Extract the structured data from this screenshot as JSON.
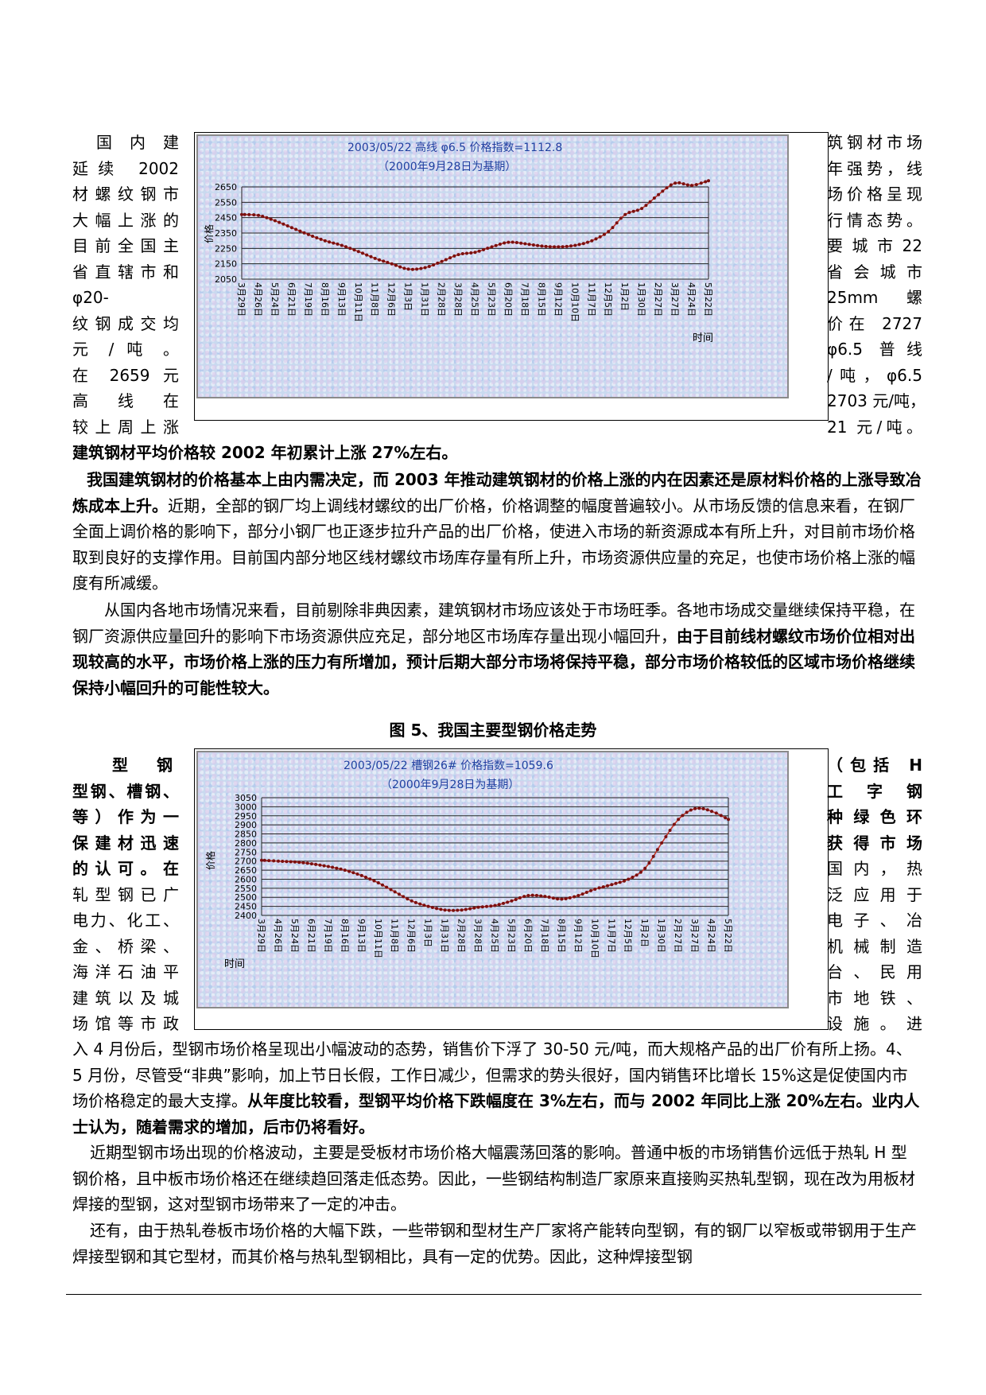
{
  "left_text_1": [
    "国内建",
    "延续 2002",
    "材螺纹钢市",
    "大幅上涨的",
    "目前全国主",
    "省直辖市和",
    "φ20-",
    "纹钢成交均",
    "元 / 吨 。",
    "在 2659 元",
    "高 线 在",
    "较上周上涨"
  ],
  "right_text_1": [
    "筑钢材市场",
    "年强势，线",
    "场价格呈现",
    "行情态势。",
    "要 城 市 22",
    "省 会 城 市",
    "25mm 螺",
    "价在 2727",
    "φ6.5 普线",
    "/吨，φ6.5",
    "2703 元/吨，",
    "21 元/吨。"
  ],
  "p1_bold": "建筑钢材平均价格较 2002 年初累计上涨 27%左右。",
  "p2_bold": "我国建筑钢材的价格基本上由内需决定，而 2003 年推动建筑钢材的价格上涨的内在因素还是原材料价格的上涨导致冶炼成本上升。",
  "p2_normal": "近期，全部的钢厂均上调线材螺纹的出厂价格，价格调整的幅度普遍较小。从市场反馈的信息来看，在钢厂全面上调价格的影响下，部分小钢厂也正逐步拉升产品的出厂价格，使进入市场的新资源成本有所上升，对目前市场价格取到良好的支撑作用。目前国内部分地区线材螺纹市场库存量有所上升，市场资源供应量的充足，也使市场价格上涨的幅度有所减缓。",
  "p3_normal": "从国内各地市场情况来看，目前剔除非典因素，建筑钢材市场应该处于市场旺季。各地市场成交量继续保持平稳，在钢厂资源供应量回升的影响下市场资源供应充足，部分地区市场库存量出现小幅回升，",
  "p3_bold": "由于目前线材螺纹市场价位相对出现较高的水平，市场价格上涨的压力有所增加，预计后期大部分市场将保持平稳，部分市场价格较低的区域市场价格继续保持小幅回升的可能性较大。",
  "fig5_caption": "图 5、我国主要型钢价格走势",
  "left_text_2": [
    "型 钢",
    "型钢、槽钢、",
    "等）作为一",
    "保建材迅速",
    "的认可。在",
    "轧型钢已广",
    "电力、化工、",
    "金、桥梁、",
    "海洋石油平",
    "建筑以及城",
    "场馆等市政"
  ],
  "right_text_2": [
    "（包括 H",
    "工 字 钢",
    "种绿色环",
    "获得市场",
    "国内，热",
    "泛应用于",
    "电子、冶",
    "机械制造",
    "台、民用",
    "市地铁、",
    "设施。进"
  ],
  "p4_normal": "入 4 月份后，型钢市场价格呈现出小幅波动的态势，销售价下浮了 30-50 元/吨，而大规格产品的出厂价有所上扬。4、5 月份，尽管受“非典”影响，加上节日长假，工作日减少，但需求的势头很好，国内销售环比增长 15%这是促使国内市场价格稳定的最大支撑。",
  "p4_bold": "从年度比较看，型钢平均价格下跌幅度在 3%左右，而与 2002 年同比上涨 20%左右。业内人士认为，随着需求的增加，后市仍将看好。",
  "p5": "近期型钢市场出现的价格波动，主要是受板材市场价格大幅震荡回落的影响。普通中板的市场销售价远低于热轧 H 型钢价格，且中板市场价格还在继续趋回落走低态势。因此，一些钢结构制造厂家原来直接购买热轧型钢，现在改为用板材焊接的型钢，这对型钢市场带来了一定的冲击。",
  "p6": "还有，由于热轧卷板市场价格的大幅下跌，一些带钢和型材生产厂家将产能转向型钢，有的钢厂以窄板或带钢用于生产焊接型钢和其它型材，而其价格与热轧型钢相比，具有一定的优势。因此，这种焊接型钢",
  "colors": {
    "chart_bg": "#c9d9ef",
    "line": "#c0392b",
    "marker": "#7a1010",
    "title": "#1f3fa0"
  },
  "chart_data": [
    {
      "type": "line",
      "title": "2003/05/22  高线  φ6.5 价格指数=1112.8",
      "subtitle": "（2000年9月28日为基期）",
      "ylabel": "价格",
      "xlabel": "时间",
      "ylim": [
        2050,
        2650
      ],
      "yticks": [
        2650,
        2550,
        2450,
        2350,
        2250,
        2150,
        2050
      ],
      "categories": [
        "3月29日",
        "4月26日",
        "5月24日",
        "6月21日",
        "7月19日",
        "8月16日",
        "9月13日",
        "10月11日",
        "11月8日",
        "12月6日",
        "1月3日",
        "1月31日",
        "2月28日",
        "3月28日",
        "4月25日",
        "5月23日",
        "6月20日",
        "7月18日",
        "8月15日",
        "9月12日",
        "10月10日",
        "11月7日",
        "12月5日",
        "1月2日",
        "1月30日",
        "2月27日",
        "3月27日",
        "4月24日",
        "5月22日"
      ],
      "values": [
        2470,
        2465,
        2430,
        2385,
        2340,
        2300,
        2270,
        2230,
        2185,
        2150,
        2115,
        2125,
        2165,
        2210,
        2225,
        2260,
        2290,
        2280,
        2265,
        2260,
        2270,
        2300,
        2360,
        2470,
        2510,
        2600,
        2675,
        2660,
        2690
      ]
    },
    {
      "type": "line",
      "title": "2003/05/22  槽钢26#  价格指数=1059.6",
      "subtitle": "（2000年9月28日为基期）",
      "ylabel": "价格",
      "xlabel": "时间",
      "ylim": [
        2400,
        3050
      ],
      "yticks": [
        3050,
        3000,
        2950,
        2900,
        2850,
        2800,
        2750,
        2700,
        2650,
        2600,
        2550,
        2500,
        2450,
        2400
      ],
      "categories": [
        "3月29日",
        "4月26日",
        "5月24日",
        "6月21日",
        "7月19日",
        "8月16日",
        "9月13日",
        "10月11日",
        "11月8日",
        "12月6日",
        "1月3日",
        "1月31日",
        "2月28日",
        "3月28日",
        "4月25日",
        "5月23日",
        "6月20日",
        "7月18日",
        "8月15日",
        "9月12日",
        "10月10日",
        "11月7日",
        "12月5日",
        "1月2日",
        "1月30日",
        "2月27日",
        "3月27日",
        "4月24日",
        "5月22日"
      ],
      "values": [
        2705,
        2700,
        2695,
        2685,
        2670,
        2650,
        2620,
        2580,
        2530,
        2480,
        2450,
        2430,
        2430,
        2445,
        2455,
        2480,
        2510,
        2505,
        2490,
        2510,
        2545,
        2570,
        2600,
        2660,
        2800,
        2930,
        2990,
        2975,
        2930
      ]
    }
  ]
}
